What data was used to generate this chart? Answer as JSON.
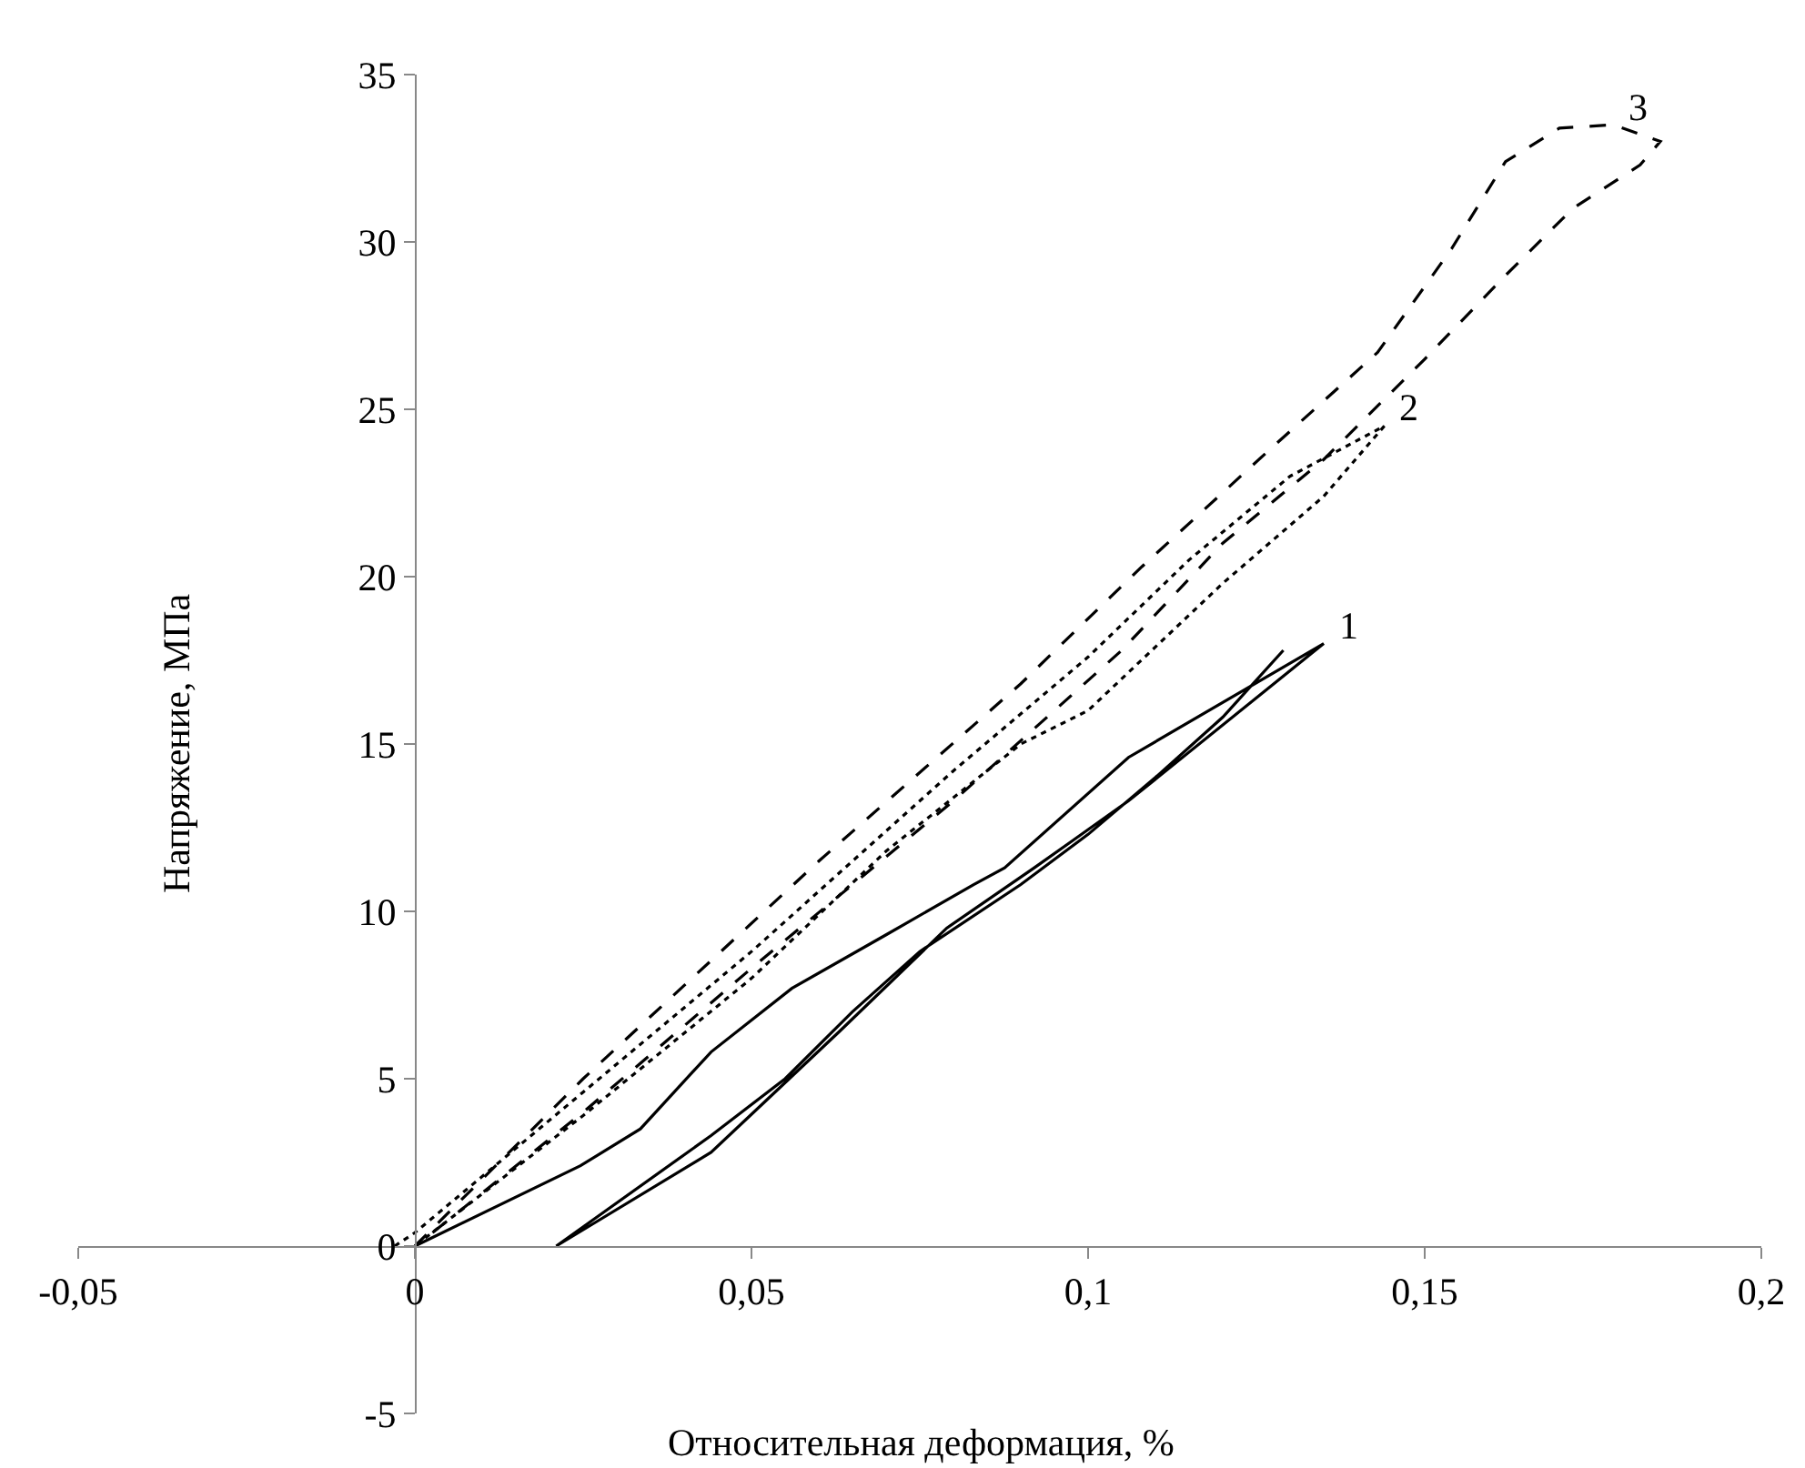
{
  "chart_data": {
    "type": "line",
    "xlabel": "Относительная деформация, %",
    "ylabel": "Напряжение, МПа",
    "series": [
      {
        "color": "#000000",
        "line_style": "solid",
        "x": [
          0,
          0.0246,
          0.0335,
          0.044,
          0.056,
          0.07,
          0.083,
          0.0876,
          0.106,
          0.135,
          0.106,
          0.0976,
          0.092,
          0.079,
          0.063,
          0.0535,
          0.044,
          0.021,
          0.044,
          0.055,
          0.065,
          0.075,
          0.09,
          0.1,
          0.11,
          0.12,
          0.129
        ],
        "values": [
          0,
          2.4,
          3.5,
          5.8,
          7.7,
          9.3,
          10.8,
          11.3,
          14.6,
          18,
          13.3,
          12.1,
          11.3,
          9.5,
          6.4,
          4.6,
          2.8,
          0,
          3.3,
          5,
          7,
          8.8,
          10.8,
          12.3,
          14,
          15.8,
          17.8
        ]
      },
      {
        "color": "#000000",
        "line_style": "dotted",
        "x": [
          -0.003,
          0,
          0.025,
          0.05,
          0.08,
          0.1,
          0.115,
          0.13,
          0.144,
          0.135,
          0.12,
          0.1,
          0.09,
          0.07,
          0.05,
          0.025,
          0
        ],
        "values": [
          0,
          0.4,
          4.6,
          8.8,
          14.2,
          17.6,
          20.5,
          23,
          24.5,
          22.4,
          19.8,
          16,
          15,
          11.8,
          8,
          3.9,
          0
        ]
      },
      {
        "color": "#000000",
        "line_style": "dashed",
        "x": [
          0,
          0.025,
          0.06,
          0.09,
          0.108,
          0.127,
          0.143,
          0.154,
          0.162,
          0.17,
          0.178,
          0.185,
          0.182,
          0.172,
          0.162,
          0.15,
          0.135,
          0.12,
          0.105,
          0.08,
          0.05,
          0.025,
          0.002
        ],
        "values": [
          0,
          5,
          11.5,
          16.8,
          20.3,
          23.8,
          26.7,
          29.8,
          32.4,
          33.4,
          33.5,
          33,
          32.3,
          31,
          29,
          26.5,
          23.5,
          21,
          17.8,
          13.3,
          8.3,
          4,
          0.3
        ]
      }
    ],
    "xlim": [
      -0.05,
      0.2
    ],
    "xticks": [
      {
        "value": -0.05,
        "label": "-0,05"
      },
      0,
      {
        "value": 0.05,
        "label": "0,05"
      },
      {
        "value": 0.1,
        "label": "0,1"
      },
      {
        "value": 0.15,
        "label": "0,15"
      },
      {
        "value": 0.2,
        "label": "0,2"
      }
    ],
    "ylim": [
      -5,
      35
    ],
    "yticks": [
      -5,
      0,
      5,
      10,
      15,
      20,
      25,
      30,
      35
    ],
    "annotations": [
      {
        "text": "1",
        "x": 0.135,
        "y": 18
      },
      {
        "text": "2",
        "x": 0.144,
        "y": 24.5
      },
      {
        "text": "3",
        "x": 0.178,
        "y": 33.5
      }
    ],
    "grid": false,
    "marker": "none"
  }
}
